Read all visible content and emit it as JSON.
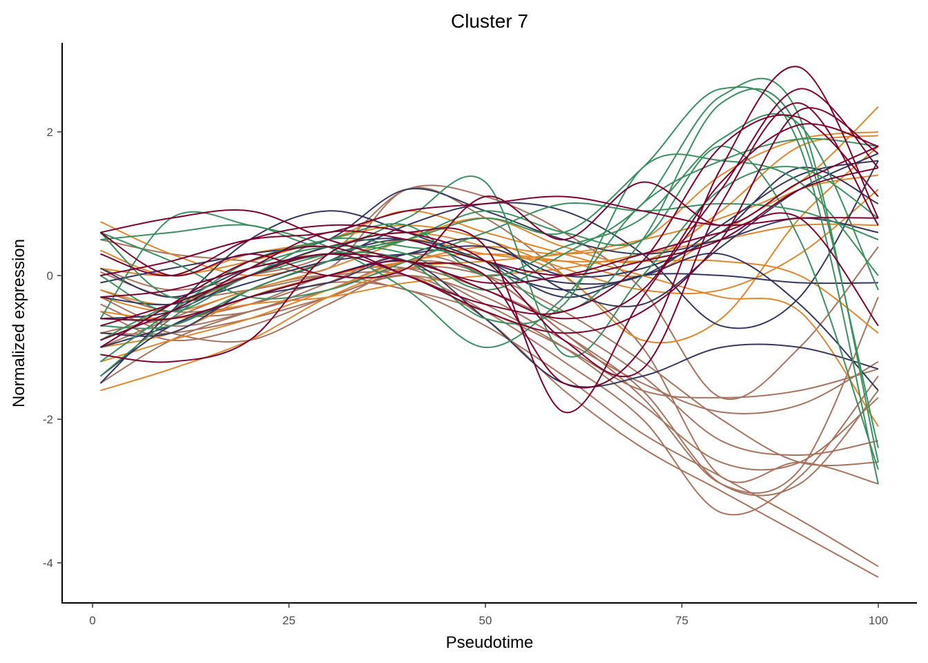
{
  "chart_data": {
    "type": "line",
    "title": "Cluster 7",
    "xlabel": "Pseudotime",
    "ylabel": "Normalized expression",
    "xlim": [
      -2,
      104
    ],
    "ylim": [
      -4.55,
      3.2
    ],
    "xticks": [
      0,
      25,
      50,
      75,
      100
    ],
    "xtick_labels": [
      "0",
      "25",
      "50",
      "75",
      "100"
    ],
    "yticks": [
      -4,
      -2,
      0,
      2
    ],
    "ytick_labels": [
      "-4",
      "-2",
      "0",
      "2"
    ],
    "grid": false,
    "legend": "none",
    "x": [
      1,
      10,
      20,
      30,
      40,
      50,
      60,
      70,
      80,
      90,
      100
    ],
    "colors": {
      "green": "#3a8f5e",
      "red": "#7d0030",
      "navy": "#33365f",
      "orange": "#e0862b",
      "brown": "#a8735e"
    },
    "series": [
      {
        "group": "brown",
        "values": [
          0.05,
          -0.3,
          -0.2,
          0.0,
          0.0,
          -0.6,
          -1.6,
          -2.4,
          -3.0,
          -3.6,
          -4.2
        ]
      },
      {
        "group": "brown",
        "values": [
          -0.2,
          -0.5,
          -0.4,
          -0.1,
          -0.2,
          -0.7,
          -1.4,
          -2.2,
          -2.8,
          -3.4,
          -4.05
        ]
      },
      {
        "group": "brown",
        "values": [
          -0.8,
          -0.8,
          -0.6,
          -0.3,
          0.0,
          -0.5,
          -1.2,
          -2.0,
          -3.3,
          -2.8,
          -1.4
        ]
      },
      {
        "group": "brown",
        "values": [
          0.5,
          0.3,
          0.2,
          0.1,
          1.2,
          0.8,
          0.0,
          -1.0,
          -2.8,
          -2.6,
          -2.9
        ]
      },
      {
        "group": "brown",
        "values": [
          -1.5,
          -0.9,
          -0.5,
          -0.2,
          0.2,
          0.0,
          -0.8,
          -1.6,
          -2.9,
          -2.9,
          -1.6
        ]
      },
      {
        "group": "brown",
        "values": [
          -0.5,
          -0.9,
          -0.7,
          -0.3,
          0.0,
          -0.3,
          -0.9,
          -1.5,
          -1.9,
          -1.8,
          -1.2
        ]
      },
      {
        "group": "brown",
        "values": [
          -1.0,
          -0.6,
          -0.2,
          0.0,
          -0.2,
          -0.5,
          -1.0,
          -1.6,
          -1.7,
          -1.6,
          -1.3
        ]
      },
      {
        "group": "brown",
        "values": [
          -0.3,
          -0.7,
          -0.5,
          -0.2,
          0.1,
          -0.2,
          -0.7,
          -1.4,
          -2.3,
          -2.5,
          -2.3
        ]
      },
      {
        "group": "brown",
        "values": [
          -0.4,
          -0.8,
          -0.9,
          -0.4,
          0.1,
          0.0,
          -0.5,
          -1.2,
          -2.0,
          -2.6,
          -2.6
        ]
      },
      {
        "group": "brown",
        "values": [
          -0.8,
          -0.6,
          -0.5,
          -0.1,
          0.3,
          0.0,
          -0.8,
          -1.7,
          -2.9,
          -2.7,
          -0.3
        ]
      },
      {
        "group": "brown",
        "values": [
          0.1,
          -0.2,
          0.0,
          0.3,
          1.2,
          1.1,
          0.6,
          -0.2,
          -1.7,
          -1.0,
          0.4
        ]
      },
      {
        "group": "brown",
        "values": [
          -0.6,
          -0.6,
          -0.4,
          0.0,
          0.1,
          -0.4,
          -1.0,
          -1.8,
          -2.6,
          -2.6,
          -1.7
        ]
      },
      {
        "group": "orange",
        "values": [
          0.75,
          0.3,
          0.0,
          0.2,
          0.5,
          0.3,
          0.2,
          0.2,
          0.2,
          0.0,
          -0.8
        ]
      },
      {
        "group": "orange",
        "values": [
          -1.6,
          -1.3,
          -0.9,
          -0.3,
          0.1,
          0.2,
          0.3,
          0.5,
          0.8,
          1.3,
          2.35
        ]
      },
      {
        "group": "orange",
        "values": [
          0.35,
          0.0,
          0.3,
          0.5,
          0.9,
          0.6,
          0.3,
          0.0,
          -0.3,
          -0.5,
          -2.1
        ]
      },
      {
        "group": "orange",
        "values": [
          -0.3,
          -0.5,
          -0.2,
          0.1,
          0.5,
          0.8,
          0.4,
          0.2,
          0.9,
          1.8,
          1.95
        ]
      },
      {
        "group": "orange",
        "values": [
          -1.0,
          -0.8,
          -0.3,
          0.0,
          0.2,
          0.4,
          0.3,
          0.5,
          1.4,
          1.9,
          2.0
        ]
      },
      {
        "group": "orange",
        "values": [
          -0.2,
          -0.4,
          0.0,
          0.4,
          0.6,
          0.4,
          0.0,
          -0.9,
          -0.6,
          0.8,
          1.8
        ]
      },
      {
        "group": "orange",
        "values": [
          -0.5,
          -0.6,
          -0.4,
          -0.3,
          -0.1,
          0.0,
          0.1,
          0.3,
          0.5,
          0.7,
          0.7
        ]
      },
      {
        "group": "orange",
        "values": [
          -1.2,
          -0.9,
          -0.6,
          -0.2,
          0.2,
          0.3,
          0.2,
          0.0,
          0.6,
          1.2,
          1.4
        ]
      },
      {
        "group": "orange",
        "values": [
          0.1,
          0.0,
          0.2,
          0.5,
          0.7,
          0.5,
          0.1,
          -0.2,
          -0.2,
          0.3,
          1.2
        ]
      },
      {
        "group": "navy",
        "values": [
          -1.5,
          -0.5,
          0.5,
          0.9,
          0.6,
          0.2,
          -0.1,
          0.0,
          0.7,
          1.4,
          1.6
        ]
      },
      {
        "group": "navy",
        "values": [
          -0.1,
          0.1,
          0.3,
          0.5,
          1.2,
          0.9,
          0.5,
          0.3,
          0.5,
          0.8,
          0.6
        ]
      },
      {
        "group": "navy",
        "values": [
          -0.8,
          -0.8,
          -0.2,
          0.2,
          0.7,
          1.0,
          0.9,
          0.3,
          -0.7,
          -0.3,
          1.6
        ]
      },
      {
        "group": "navy",
        "values": [
          -1.0,
          -0.7,
          -0.3,
          -0.1,
          0.2,
          -0.6,
          -1.5,
          -1.4,
          -1.0,
          -1.0,
          -1.3
        ]
      },
      {
        "group": "navy",
        "values": [
          -0.6,
          -0.5,
          0.0,
          0.4,
          0.5,
          0.1,
          -0.2,
          0.0,
          0.3,
          -0.4,
          -1.6
        ]
      },
      {
        "group": "navy",
        "values": [
          0.1,
          -0.3,
          0.1,
          0.3,
          0.5,
          0.2,
          -0.3,
          0.0,
          0.0,
          -0.1,
          -0.1
        ]
      },
      {
        "group": "navy",
        "values": [
          -1.4,
          -0.7,
          -0.3,
          0.0,
          0.3,
          0.5,
          -0.2,
          -0.4,
          0.4,
          1.2,
          1.7
        ]
      },
      {
        "group": "navy",
        "values": [
          -0.3,
          -0.4,
          -0.1,
          0.2,
          0.3,
          0.4,
          0.0,
          0.1,
          0.6,
          1.5,
          1.0
        ]
      },
      {
        "group": "green",
        "values": [
          0.6,
          -0.3,
          0.0,
          0.3,
          0.5,
          0.8,
          0.6,
          1.5,
          2.6,
          1.8,
          -2.9
        ]
      },
      {
        "group": "green",
        "values": [
          0.5,
          0.6,
          0.7,
          0.4,
          0.8,
          1.3,
          -1.1,
          0.0,
          1.2,
          1.5,
          0.8
        ]
      },
      {
        "group": "green",
        "values": [
          -1.4,
          -0.6,
          0.1,
          0.4,
          0.3,
          -0.2,
          0.3,
          1.0,
          2.5,
          2.2,
          -2.6
        ]
      },
      {
        "group": "green",
        "values": [
          -0.6,
          0.8,
          0.7,
          0.4,
          -0.2,
          -1.0,
          -0.3,
          1.0,
          1.6,
          1.9,
          1.8
        ]
      },
      {
        "group": "green",
        "values": [
          -0.9,
          -0.4,
          0.0,
          0.5,
          0.4,
          0.2,
          -0.5,
          0.5,
          2.4,
          2.0,
          -2.4
        ]
      },
      {
        "group": "green",
        "values": [
          0.0,
          -0.5,
          0.0,
          0.3,
          0.2,
          -0.6,
          -0.4,
          1.5,
          1.6,
          1.3,
          0.0
        ]
      },
      {
        "group": "green",
        "values": [
          -1.2,
          -0.5,
          0.2,
          0.5,
          0.7,
          0.0,
          0.4,
          0.8,
          1.9,
          2.1,
          -0.2
        ]
      },
      {
        "group": "green",
        "values": [
          0.6,
          0.2,
          -0.3,
          -0.2,
          0.2,
          0.6,
          1.0,
          0.9,
          1.0,
          0.9,
          0.5
        ]
      },
      {
        "group": "green",
        "values": [
          -0.7,
          -0.7,
          -0.2,
          0.2,
          0.5,
          0.9,
          0.6,
          0.5,
          1.8,
          0.5,
          -2.7
        ]
      },
      {
        "group": "red",
        "values": [
          0.6,
          0.8,
          0.9,
          0.5,
          0.2,
          0.0,
          -1.5,
          -1.0,
          1.5,
          2.9,
          0.8
        ]
      },
      {
        "group": "red",
        "values": [
          -1.1,
          -1.2,
          -0.9,
          0.3,
          0.6,
          0.4,
          -1.9,
          -0.3,
          1.2,
          2.6,
          1.5
        ]
      },
      {
        "group": "red",
        "values": [
          0.3,
          0.0,
          0.5,
          0.7,
          0.6,
          0.2,
          -0.9,
          -1.3,
          1.0,
          2.4,
          0.7
        ]
      },
      {
        "group": "red",
        "values": [
          -0.7,
          -0.4,
          0.0,
          0.3,
          0.0,
          -0.5,
          -0.8,
          -0.5,
          0.5,
          2.3,
          1.7
        ]
      },
      {
        "group": "red",
        "values": [
          0.6,
          0.0,
          0.3,
          0.0,
          0.1,
          1.1,
          0.5,
          1.3,
          0.7,
          1.3,
          1.8
        ]
      },
      {
        "group": "red",
        "values": [
          -0.9,
          -0.5,
          0.1,
          0.6,
          0.5,
          0.2,
          0.0,
          0.2,
          0.5,
          1.2,
          1.5
        ]
      },
      {
        "group": "red",
        "values": [
          -1.0,
          -0.4,
          0.2,
          0.4,
          0.0,
          -0.4,
          -0.5,
          0.2,
          1.8,
          2.2,
          1.1
        ]
      },
      {
        "group": "red",
        "values": [
          -0.3,
          -0.2,
          0.1,
          0.3,
          0.2,
          -0.1,
          0.0,
          0.3,
          0.6,
          0.8,
          -0.7
        ]
      },
      {
        "group": "red",
        "values": [
          0.0,
          0.2,
          0.5,
          0.6,
          0.9,
          1.0,
          1.1,
          0.9,
          0.7,
          0.8,
          0.8
        ]
      },
      {
        "group": "red",
        "values": [
          -0.6,
          -0.6,
          -0.3,
          0.0,
          0.2,
          -0.2,
          -0.6,
          -0.2,
          1.3,
          2.1,
          1.8
        ]
      }
    ]
  }
}
